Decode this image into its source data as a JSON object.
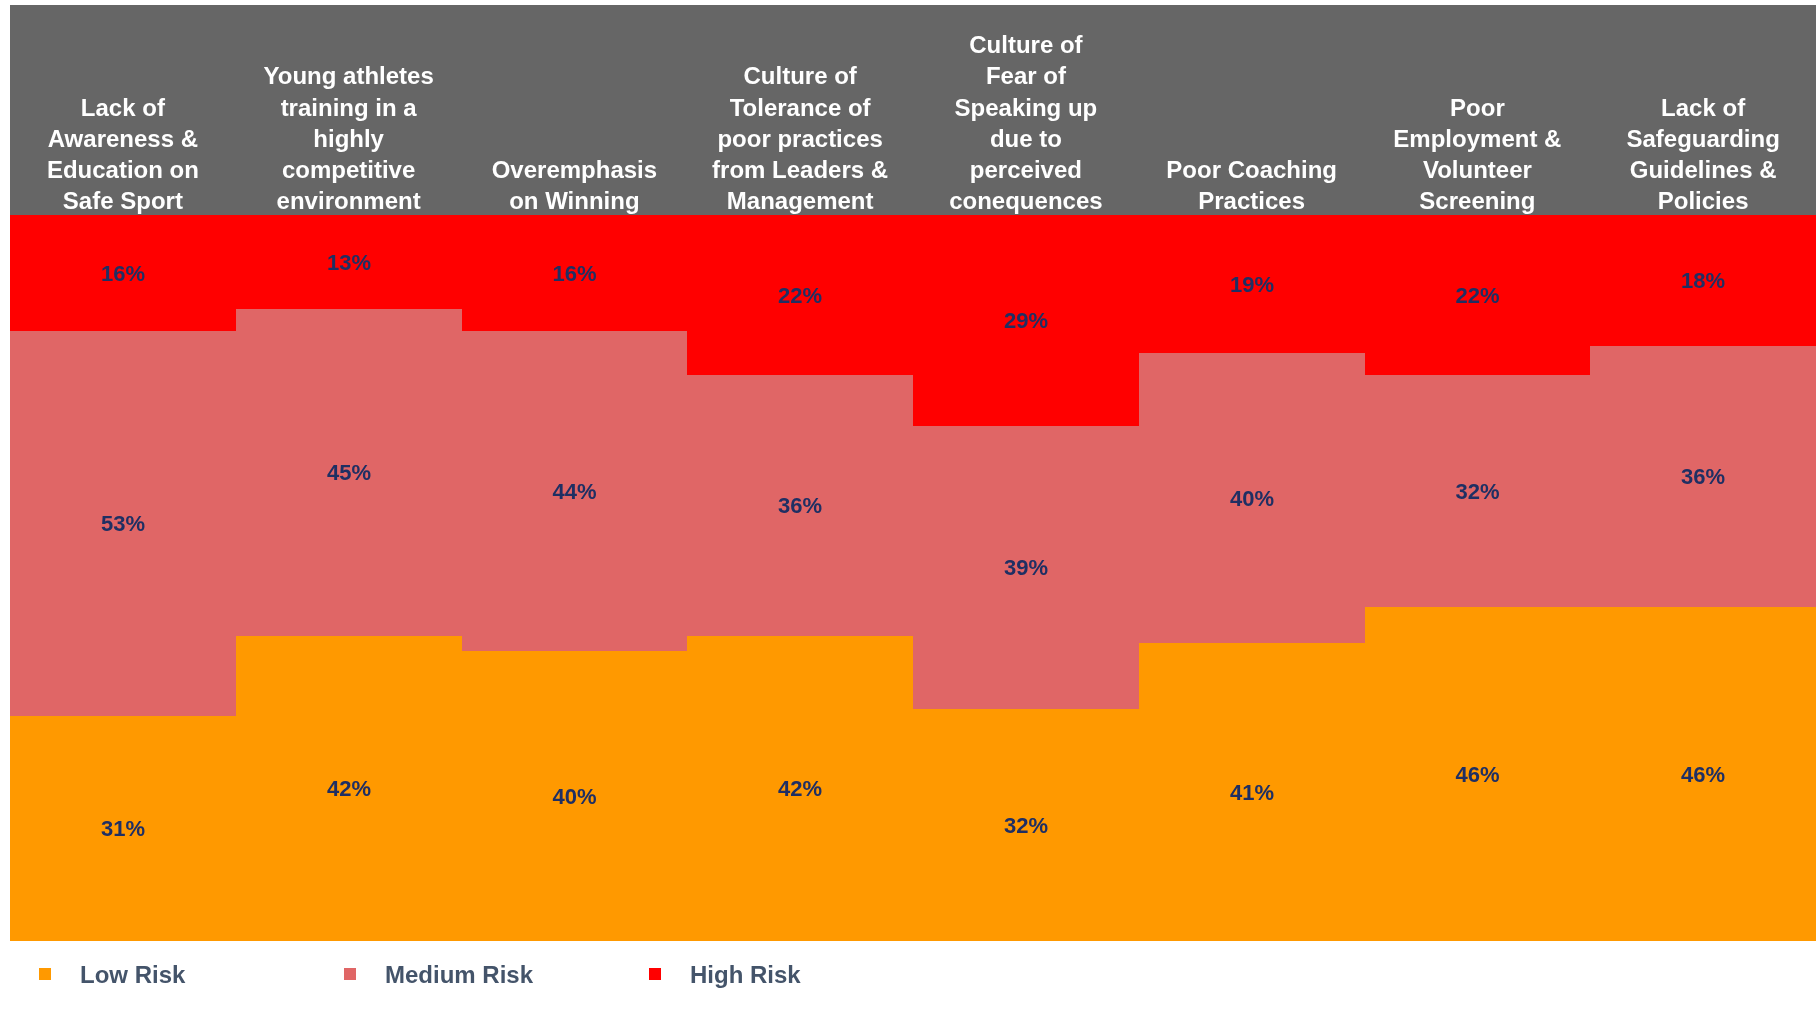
{
  "chart_data": {
    "type": "bar",
    "stacked": true,
    "categories": [
      "Lack of Awareness & Education on Safe Sport",
      "Young athletes training in a highly competitive environment",
      "Overemphasis on Winning",
      "Culture of Tolerance of poor practices from Leaders & Management",
      "Culture of Fear of Speaking up due to perceived conequences",
      "Poor Coaching Practices",
      "Poor Employment & Volunteer Screening",
      "Lack of Safeguarding Guidelines & Policies"
    ],
    "series": [
      {
        "name": "Low Risk",
        "color": "#ff9900",
        "values": [
          31,
          42,
          40,
          42,
          32,
          41,
          46,
          46
        ],
        "value_labels": [
          "31%",
          "42%",
          "40%",
          "42%",
          "32%",
          "41%",
          "46%",
          "46%"
        ]
      },
      {
        "name": "Medium Risk",
        "color": "#e06666",
        "values": [
          53,
          45,
          44,
          36,
          39,
          40,
          32,
          36
        ],
        "value_labels": [
          "53%",
          "45%",
          "44%",
          "36%",
          "39%",
          "40%",
          "32%",
          "36%"
        ]
      },
      {
        "name": "High Risk",
        "color": "#ff0000",
        "values": [
          16,
          13,
          16,
          22,
          29,
          19,
          22,
          18
        ],
        "value_labels": [
          "16%",
          "13%",
          "16%",
          "22%",
          "29%",
          "19%",
          "22%",
          "18%"
        ]
      }
    ],
    "tick_labels": "x",
    "legend": "bottom left"
  }
}
